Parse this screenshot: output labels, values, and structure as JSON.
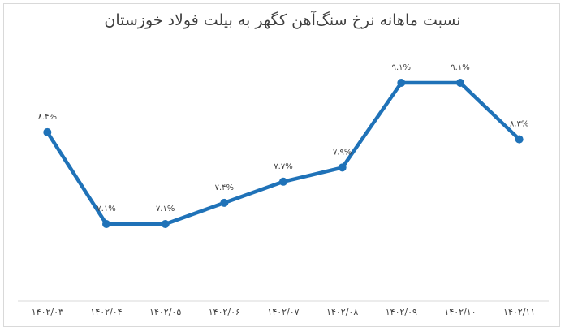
{
  "chart_data": {
    "type": "line",
    "title": "نسبت ماهانه نرخ سنگ‌آهن کگهر به بیلت فولاد خوزستان",
    "categories": [
      "۱۴۰۲/۰۳",
      "۱۴۰۲/۰۴",
      "۱۴۰۲/۰۵",
      "۱۴۰۲/۰۶",
      "۱۴۰۲/۰۷",
      "۱۴۰۲/۰۸",
      "۱۴۰۲/۰۹",
      "۱۴۰۲/۱۰",
      "۱۴۰۲/۱۱"
    ],
    "values": [
      8.4,
      7.1,
      7.1,
      7.4,
      7.7,
      7.9,
      9.1,
      9.1,
      8.3
    ],
    "value_labels": [
      "۸.۴%",
      "۷.۱%",
      "۷.۱%",
      "۷.۴%",
      "۷.۷%",
      "۷.۹%",
      "۹.۱%",
      "۹.۱%",
      "۸.۳%"
    ],
    "color": "#1f72b8",
    "grid": false,
    "legend": "none"
  }
}
